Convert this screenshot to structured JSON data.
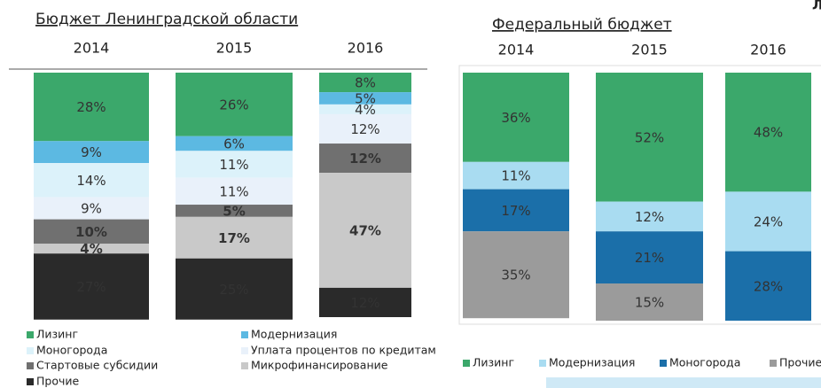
{
  "corner_text": "Л",
  "chart_data": [
    {
      "type": "bar",
      "stacked": true,
      "title": "Бюджет Ленинградской области",
      "categories": [
        "2014",
        "2015",
        "2016"
      ],
      "series": [
        {
          "name": "Лизинг",
          "color": "#3ba86b",
          "values": [
            28,
            26,
            8
          ],
          "value_labels": [
            "28%",
            "26%",
            "8%"
          ]
        },
        {
          "name": "Модернизация",
          "color": "#5cb9e2",
          "values": [
            9,
            6,
            5
          ],
          "value_labels": [
            "9%",
            "6%",
            "5%"
          ]
        },
        {
          "name": "Моногорода",
          "color": "#dcf2fa",
          "values": [
            14,
            11,
            4
          ],
          "value_labels": [
            "14%",
            "11%",
            "4%"
          ]
        },
        {
          "name": "Уплата процентов по кредитам",
          "color": "#e9f1fa",
          "values": [
            9,
            11,
            12
          ],
          "value_labels": [
            "9%",
            "11%",
            "12%"
          ]
        },
        {
          "name": "Стартовые субсидии",
          "color": "#707070",
          "values": [
            10,
            5,
            12
          ],
          "value_labels": [
            "10%",
            "5%",
            "12%"
          ]
        },
        {
          "name": "Микрофинансирование",
          "color": "#c9c9c9",
          "values": [
            4,
            17,
            47
          ],
          "value_labels": [
            "4%",
            "17%",
            "47%"
          ]
        },
        {
          "name": "Прочие",
          "color": "#2a2a2a",
          "values": [
            27,
            25,
            12
          ],
          "value_labels": [
            "27%",
            "25%",
            "12%"
          ]
        }
      ]
    },
    {
      "type": "bar",
      "stacked": true,
      "title": "Федеральный  бюджет",
      "categories": [
        "2014",
        "2015",
        "2016"
      ],
      "series": [
        {
          "name": "Лизинг",
          "color": "#3ba86b",
          "values": [
            36,
            52,
            48
          ],
          "value_labels": [
            "36%",
            "52%",
            "48%"
          ]
        },
        {
          "name": "Модернизация",
          "color": "#a9dcf1",
          "values": [
            11,
            12,
            24
          ],
          "value_labels": [
            "11%",
            "12%",
            "24%"
          ]
        },
        {
          "name": "Моногорода",
          "color": "#1b6fa9",
          "values": [
            17,
            21,
            28
          ],
          "value_labels": [
            "17%",
            "21%",
            "28%"
          ]
        },
        {
          "name": "Прочие",
          "color": "#9b9b9b",
          "values": [
            35,
            15,
            null
          ],
          "value_labels": [
            "35%",
            "15%",
            null
          ]
        }
      ]
    }
  ]
}
